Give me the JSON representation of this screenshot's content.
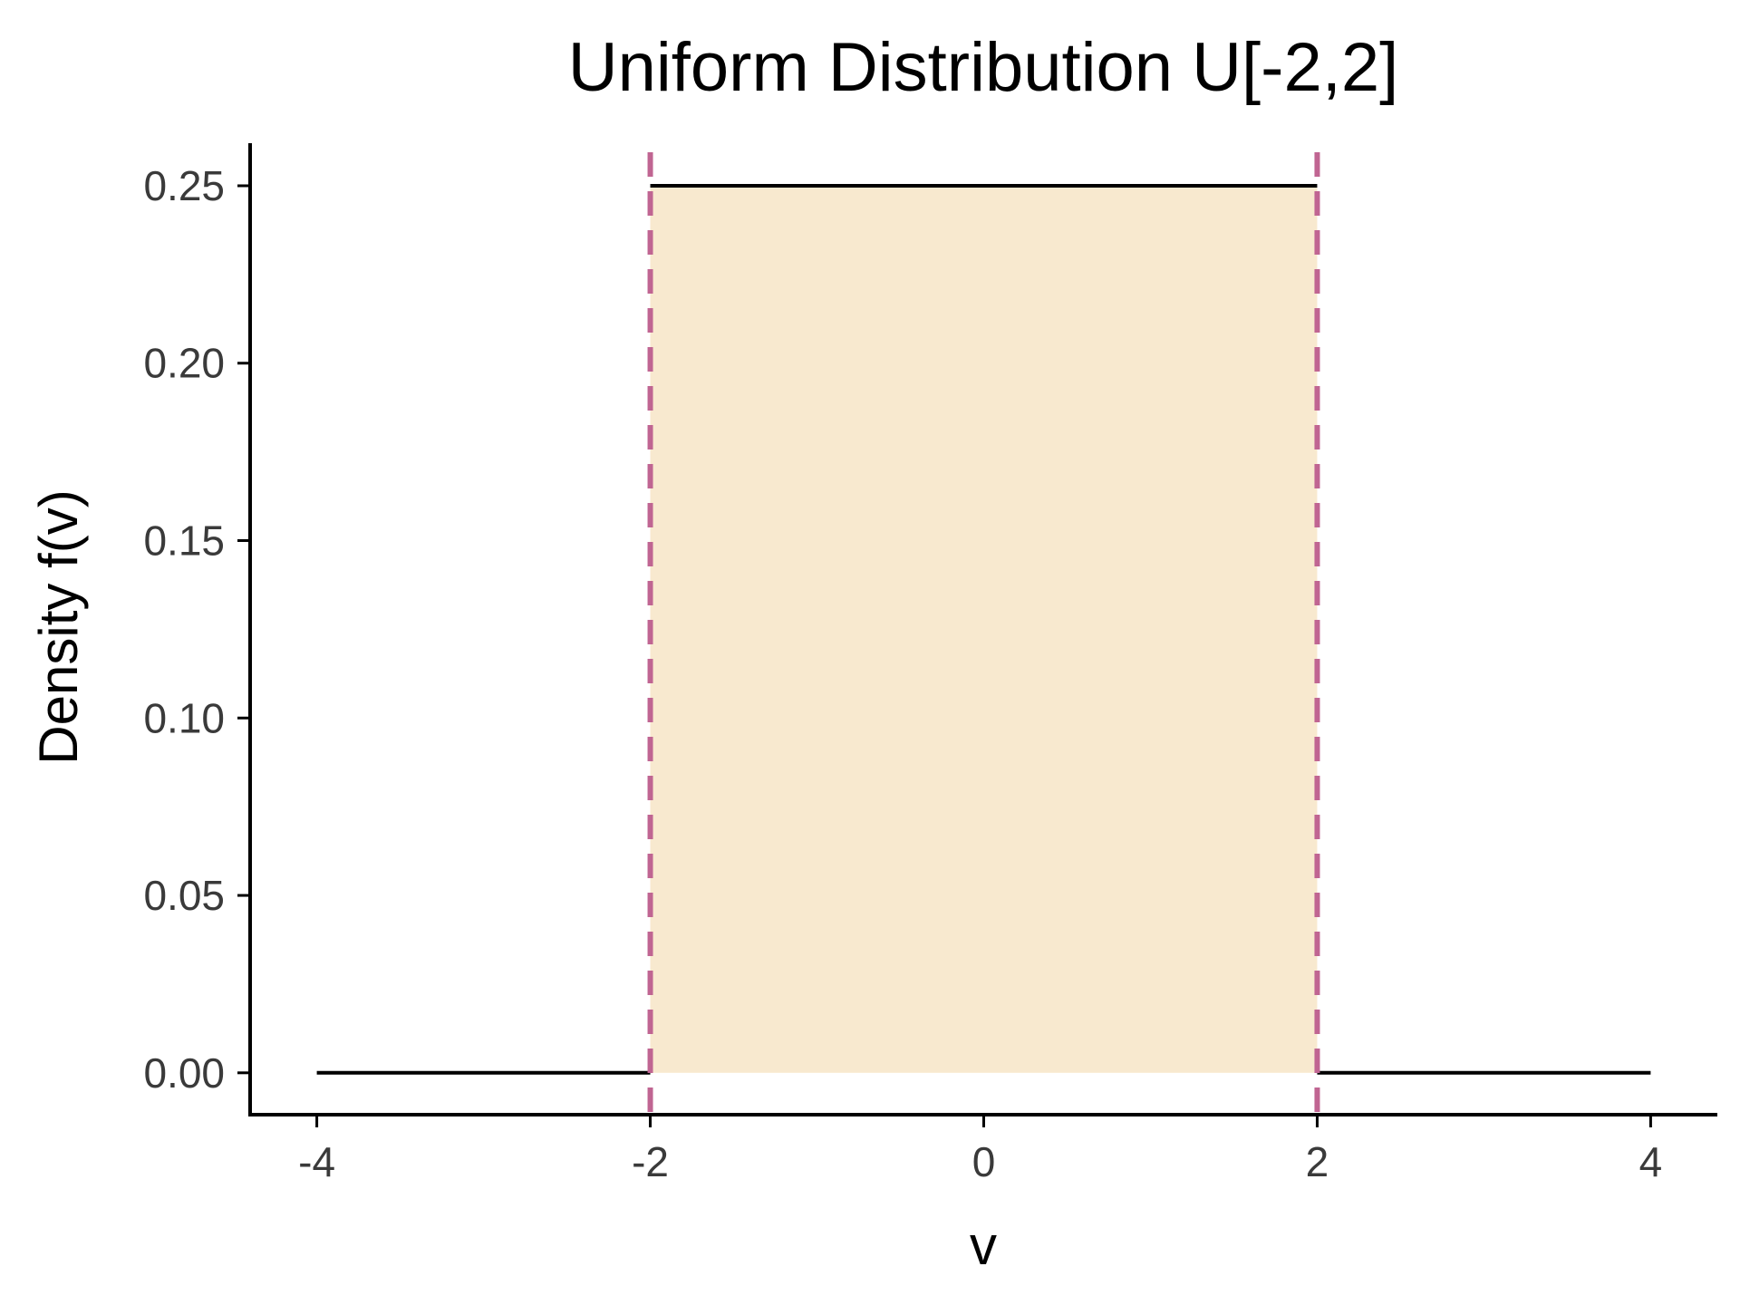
{
  "chart_data": {
    "type": "line",
    "title": "Uniform Distribution U[-2,2]",
    "xlabel": "v",
    "ylabel": "Density f(v)",
    "xlim": [
      -4.4,
      4.4
    ],
    "ylim": [
      -0.0118,
      0.262
    ],
    "x_ticks": [
      -4,
      -2,
      0,
      2,
      4
    ],
    "x_tick_labels": [
      "-4",
      "-2",
      "0",
      "2",
      "4"
    ],
    "y_ticks": [
      0.0,
      0.05,
      0.1,
      0.15,
      0.2,
      0.25
    ],
    "y_tick_labels": [
      "0.00",
      "0.05",
      "0.10",
      "0.15",
      "0.20",
      "0.25"
    ],
    "grid": false,
    "legend": "none",
    "series": [
      {
        "segments": [
          {
            "x": [
              -4,
              -2
            ],
            "y": [
              0,
              0
            ]
          },
          {
            "x": [
              -2,
              2
            ],
            "y": [
              0.25,
              0.25
            ]
          },
          {
            "x": [
              2,
              4
            ],
            "y": [
              0,
              0
            ]
          }
        ],
        "color": "#000000"
      }
    ],
    "shaded_region": {
      "x": [
        -2,
        2
      ],
      "y": [
        0,
        0.25
      ],
      "color": "#F8E9CF"
    },
    "vertical_lines": [
      {
        "x": -2,
        "style": "dashed",
        "color": "#C06592"
      },
      {
        "x": 2,
        "style": "dashed",
        "color": "#C06592"
      }
    ]
  }
}
